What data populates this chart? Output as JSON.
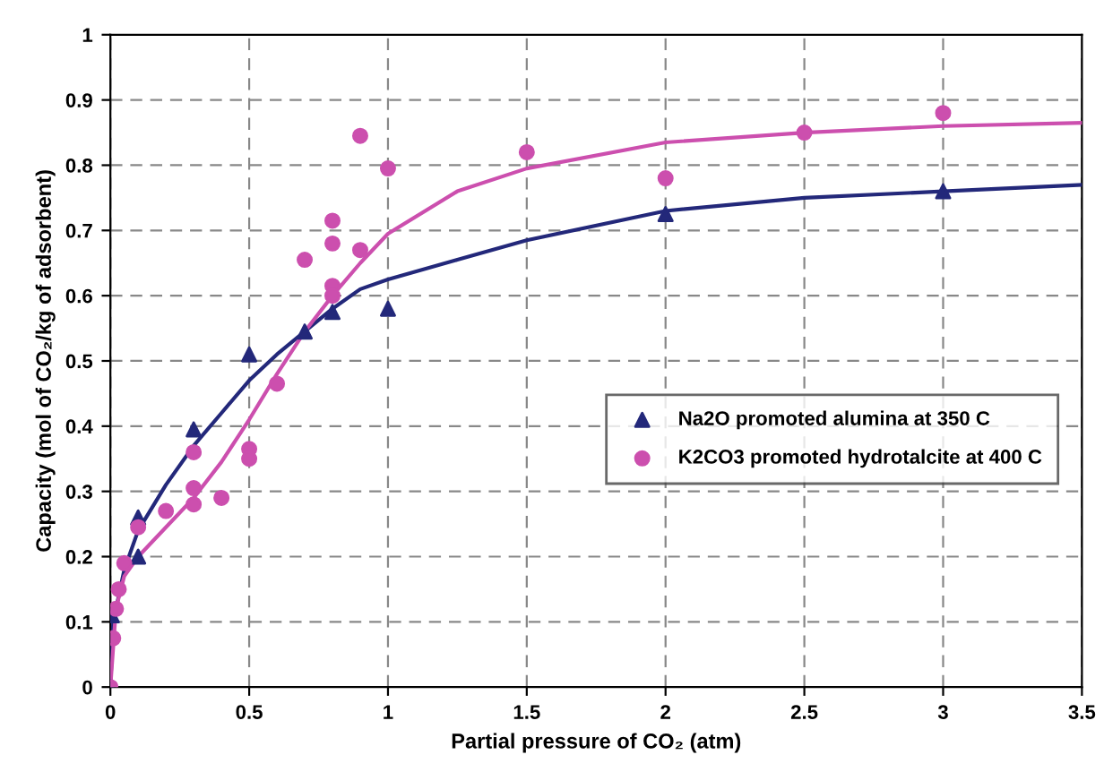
{
  "chart_data": {
    "type": "scatter",
    "xlabel": "Partial pressure of CO₂ (atm)",
    "ylabel": "Capacity (mol of CO₂/kg of adsorbent)",
    "xlim": [
      0,
      3.5
    ],
    "ylim": [
      0,
      1
    ],
    "xticks": [
      0,
      0.5,
      1,
      1.5,
      2,
      2.5,
      3,
      3.5
    ],
    "yticks": [
      0,
      0.1,
      0.2,
      0.3,
      0.4,
      0.5,
      0.6,
      0.7,
      0.8,
      0.9,
      1
    ],
    "grid": true,
    "legend": "right",
    "series": [
      {
        "type": "line",
        "color": "#23287a",
        "marker": "none",
        "x": [
          0,
          0.01,
          0.05,
          0.1,
          0.2,
          0.3,
          0.4,
          0.5,
          0.6,
          0.7,
          0.8,
          0.9,
          1.0,
          1.25,
          1.5,
          2.0,
          2.5,
          3.0,
          3.5
        ],
        "values": [
          0,
          0.1,
          0.18,
          0.24,
          0.31,
          0.37,
          0.42,
          0.47,
          0.51,
          0.545,
          0.58,
          0.61,
          0.625,
          0.655,
          0.685,
          0.73,
          0.75,
          0.76,
          0.77
        ]
      },
      {
        "type": "line",
        "color": "#cc4fae",
        "marker": "none",
        "x": [
          0,
          0.02,
          0.05,
          0.1,
          0.2,
          0.3,
          0.4,
          0.5,
          0.6,
          0.7,
          0.8,
          0.9,
          1.0,
          1.25,
          1.5,
          2.0,
          2.5,
          3.0,
          3.5
        ],
        "values": [
          0,
          0.12,
          0.17,
          0.2,
          0.245,
          0.29,
          0.345,
          0.41,
          0.48,
          0.545,
          0.6,
          0.65,
          0.695,
          0.76,
          0.795,
          0.835,
          0.85,
          0.86,
          0.865
        ]
      },
      {
        "name": "Na2O promoted alumina at 350 C",
        "color": "#23287a",
        "marker": "triangle",
        "x": [
          0,
          0.005,
          0.1,
          0.1,
          0.3,
          0.5,
          0.7,
          0.8,
          1.0,
          2.0,
          3.0
        ],
        "values": [
          0,
          0.11,
          0.26,
          0.2,
          0.395,
          0.51,
          0.545,
          0.575,
          0.58,
          0.725,
          0.76
        ]
      },
      {
        "name": "K2CO3 promoted hydrotalcite at 400 C",
        "color": "#cc4fae",
        "marker": "circle",
        "x": [
          0,
          0.01,
          0.02,
          0.03,
          0.05,
          0.1,
          0.2,
          0.3,
          0.3,
          0.3,
          0.4,
          0.5,
          0.5,
          0.6,
          0.7,
          0.8,
          0.8,
          0.8,
          0.8,
          0.9,
          0.9,
          1.0,
          1.5,
          2.0,
          2.5,
          3.0
        ],
        "values": [
          0,
          0.075,
          0.12,
          0.15,
          0.19,
          0.245,
          0.27,
          0.36,
          0.305,
          0.28,
          0.29,
          0.365,
          0.35,
          0.465,
          0.655,
          0.715,
          0.68,
          0.615,
          0.6,
          0.845,
          0.67,
          0.795,
          0.82,
          0.78,
          0.85,
          0.88
        ]
      }
    ]
  }
}
